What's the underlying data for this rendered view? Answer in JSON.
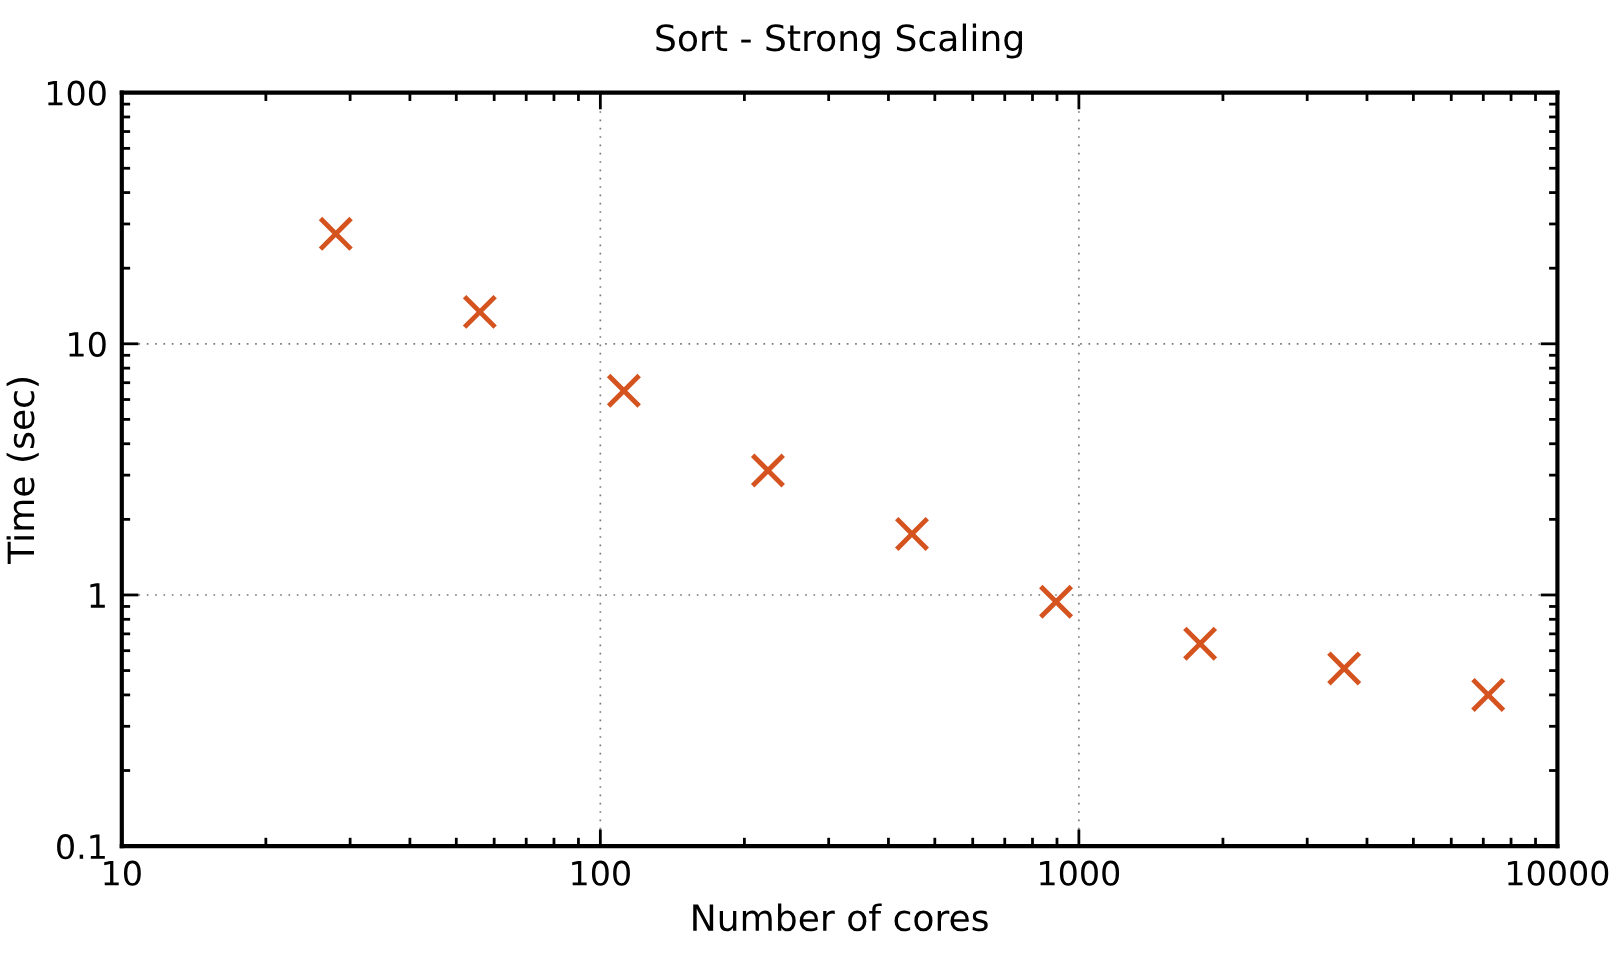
{
  "chart_data": {
    "type": "scatter",
    "title": "Sort - Strong Scaling",
    "xlabel": "Number of cores",
    "ylabel": "Time (sec)",
    "x": [
      28,
      56,
      112,
      224,
      448,
      896,
      1792,
      3584,
      7168
    ],
    "series": [
      {
        "color": "#d5531f",
        "values": [
          27.4,
          13.4,
          6.5,
          3.13,
          1.75,
          0.94,
          0.64,
          0.51,
          0.4
        ]
      }
    ],
    "log": "xy",
    "xlim": [
      10,
      10000
    ],
    "ylim": [
      0.1,
      100
    ],
    "xticks": [
      10,
      100,
      1000,
      10000
    ],
    "yticks": [
      0.1,
      1,
      10,
      100
    ],
    "grid": true,
    "marker": "cross"
  }
}
